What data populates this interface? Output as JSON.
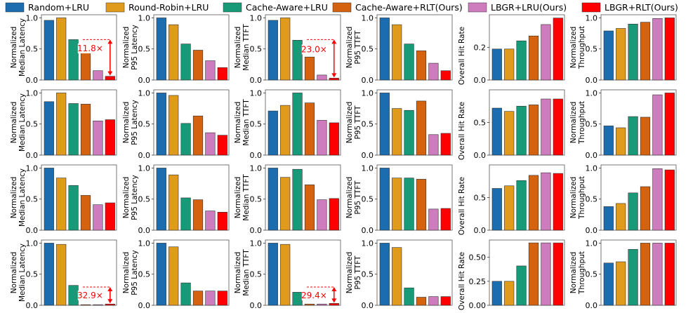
{
  "chart_data": {
    "type": "bar",
    "layout": "grid",
    "legend": {
      "placement": "top",
      "entries": [
        {
          "name": "Random+LRU",
          "color": "#1b6db0"
        },
        {
          "name": "Round-Robin+LRU",
          "color": "#e09a1c"
        },
        {
          "name": "Cache-Aware+LRU",
          "color": "#189a78"
        },
        {
          "name": "Cache-Aware+RLT(Ours)",
          "color": "#d4620e"
        },
        {
          "name": "LBGR+LRU(Ours)",
          "color": "#cf7cbf"
        },
        {
          "name": "LBGR+RLT(Ours)",
          "color": "#ff0000"
        }
      ]
    },
    "columns": [
      {
        "ylabel": [
          "Normalized",
          "Median Latency"
        ]
      },
      {
        "ylabel": [
          "Normalized",
          "P95 Latency"
        ]
      },
      {
        "ylabel": [
          "Normalized",
          "Median TTFT"
        ]
      },
      {
        "ylabel": [
          "Normalized",
          "P95 TTFT"
        ]
      },
      {
        "ylabel": [
          "Overall Hit Rate"
        ]
      },
      {
        "ylabel": [
          "Normalized",
          "Throughput"
        ]
      }
    ],
    "rows": [
      [
        {
          "values": [
            0.96,
            1.0,
            0.65,
            0.47,
            0.15,
            0.06
          ],
          "ylim": [
            0,
            1.05
          ],
          "yticks": [
            "0.0",
            "0.5",
            "1.0"
          ],
          "annotation": "11.8×"
        },
        {
          "values": [
            1.0,
            0.89,
            0.58,
            0.48,
            0.31,
            0.2
          ],
          "ylim": [
            0,
            1.05
          ],
          "yticks": [
            "0.0",
            "0.5",
            "1.0"
          ]
        },
        {
          "values": [
            0.96,
            1.0,
            0.64,
            0.37,
            0.08,
            0.03
          ],
          "ylim": [
            0,
            1.05
          ],
          "yticks": [
            "0.0",
            "0.5",
            "1.0"
          ],
          "annotation": "23.0×"
        },
        {
          "values": [
            1.0,
            0.89,
            0.58,
            0.47,
            0.27,
            0.15
          ],
          "ylim": [
            0,
            1.05
          ],
          "yticks": [
            "0.0",
            "0.5",
            "1.0"
          ]
        },
        {
          "values": [
            0.19,
            0.19,
            0.24,
            0.27,
            0.34,
            0.38
          ],
          "ylim": [
            0,
            0.4
          ],
          "yticks": [
            "0.0",
            "0.2"
          ]
        },
        {
          "values": [
            0.79,
            0.83,
            0.9,
            0.93,
            0.99,
            1.0
          ],
          "ylim": [
            0,
            1.05
          ],
          "yticks": [
            "0.0",
            "0.5",
            "1.0"
          ]
        }
      ],
      [
        {
          "values": [
            0.86,
            1.0,
            0.83,
            0.82,
            0.55,
            0.57
          ],
          "ylim": [
            0,
            1.05
          ],
          "yticks": [
            "0.0",
            "0.5",
            "1.0"
          ]
        },
        {
          "values": [
            1.0,
            0.96,
            0.51,
            0.63,
            0.36,
            0.32
          ],
          "ylim": [
            0,
            1.05
          ],
          "yticks": [
            "0.0",
            "0.5",
            "1.0"
          ]
        },
        {
          "values": [
            0.71,
            0.8,
            1.0,
            0.84,
            0.56,
            0.52
          ],
          "ylim": [
            0,
            1.05
          ],
          "yticks": [
            "0.0",
            "0.5",
            "1.0"
          ]
        },
        {
          "values": [
            1.0,
            0.75,
            0.72,
            0.87,
            0.33,
            0.35
          ],
          "ylim": [
            0,
            1.05
          ],
          "yticks": [
            "0.0",
            "0.5",
            "1.0"
          ]
        },
        {
          "values": [
            0.72,
            0.67,
            0.75,
            0.77,
            0.86,
            0.86
          ],
          "ylim": [
            0,
            1.0
          ],
          "yticks": [
            "0.0",
            "0.5"
          ]
        },
        {
          "values": [
            0.47,
            0.44,
            0.62,
            0.61,
            0.97,
            1.0
          ],
          "ylim": [
            0,
            1.05
          ],
          "yticks": [
            "0.0",
            "0.5",
            "1.0"
          ]
        }
      ],
      [
        {
          "values": [
            1.0,
            0.84,
            0.72,
            0.56,
            0.41,
            0.44
          ],
          "ylim": [
            0,
            1.05
          ],
          "yticks": [
            "0.0",
            "0.5",
            "1.0"
          ]
        },
        {
          "values": [
            1.0,
            0.89,
            0.52,
            0.49,
            0.31,
            0.29
          ],
          "ylim": [
            0,
            1.05
          ],
          "yticks": [
            "0.0",
            "0.5",
            "1.0"
          ]
        },
        {
          "values": [
            1.0,
            0.85,
            0.98,
            0.73,
            0.49,
            0.51
          ],
          "ylim": [
            0,
            1.05
          ],
          "yticks": [
            "0.0",
            "0.5",
            "1.0"
          ]
        },
        {
          "values": [
            1.0,
            0.84,
            0.84,
            0.82,
            0.34,
            0.35
          ],
          "ylim": [
            0,
            1.05
          ],
          "yticks": [
            "0.0",
            "0.5",
            "1.0"
          ]
        },
        {
          "values": [
            0.64,
            0.68,
            0.76,
            0.84,
            0.88,
            0.87
          ],
          "ylim": [
            0,
            1.0
          ],
          "yticks": [
            "0.0",
            "0.5"
          ]
        },
        {
          "values": [
            0.38,
            0.43,
            0.6,
            0.7,
            0.99,
            0.97
          ],
          "ylim": [
            0,
            1.05
          ],
          "yticks": [
            "0.0",
            "0.5",
            "1.0"
          ]
        }
      ],
      [
        {
          "values": [
            1.0,
            0.98,
            0.32,
            0.01,
            0.01,
            0.02
          ],
          "ylim": [
            0,
            1.05
          ],
          "yticks": [
            "0.0",
            "0.5",
            "1.0"
          ],
          "annotation": "32.9×"
        },
        {
          "values": [
            1.0,
            0.94,
            0.36,
            0.23,
            0.23,
            0.23
          ],
          "ylim": [
            0,
            1.05
          ],
          "yticks": [
            "0.0",
            "0.5",
            "1.0"
          ]
        },
        {
          "values": [
            1.0,
            0.98,
            0.21,
            0.02,
            0.02,
            0.03
          ],
          "ylim": [
            0,
            1.05
          ],
          "yticks": [
            "0.0",
            "0.5",
            "1.0"
          ],
          "annotation": "29.4×"
        },
        {
          "values": [
            1.0,
            0.93,
            0.28,
            0.13,
            0.14,
            0.14
          ],
          "ylim": [
            0,
            1.05
          ],
          "yticks": [
            "0.0",
            "0.5",
            "1.0"
          ]
        },
        {
          "values": [
            0.25,
            0.25,
            0.41,
            0.65,
            0.65,
            0.65
          ],
          "ylim": [
            0,
            0.68
          ],
          "yticks": [
            "0.00",
            "0.25",
            "0.50"
          ]
        },
        {
          "values": [
            0.68,
            0.7,
            0.9,
            1.0,
            1.0,
            1.0
          ],
          "ylim": [
            0,
            1.05
          ],
          "yticks": [
            "0.0",
            "0.5",
            "1.0"
          ]
        }
      ]
    ]
  }
}
